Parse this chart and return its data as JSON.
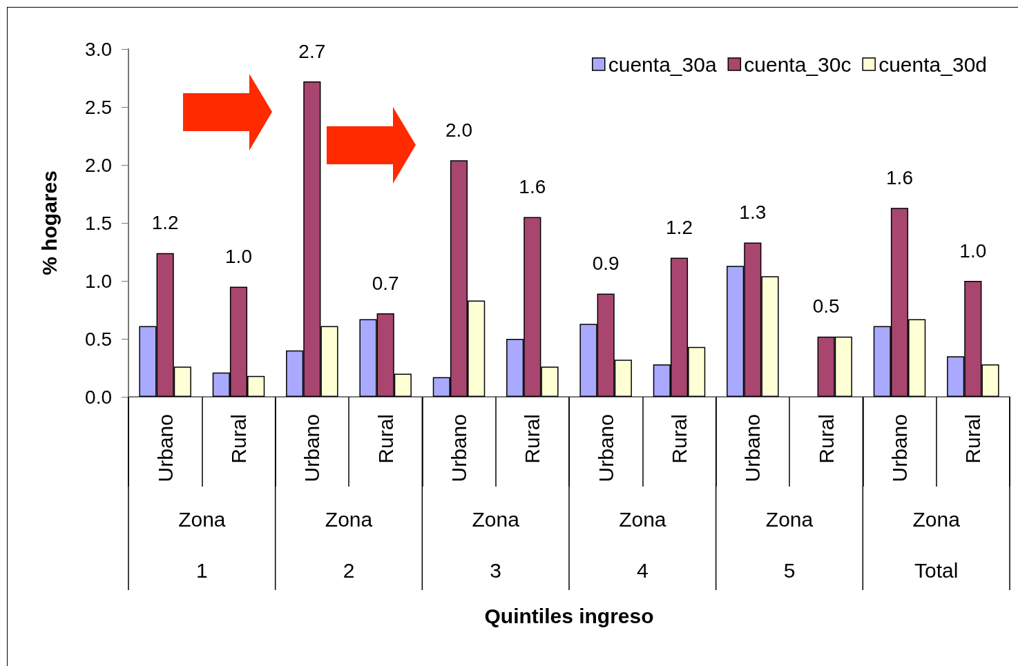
{
  "chart_data": {
    "type": "bar",
    "ylabel": "% hogares",
    "categories": [
      "Urbano",
      "Rural",
      "Urbano",
      "Rural",
      "Urbano",
      "Rural",
      "Urbano",
      "Rural",
      "Urbano",
      "Rural",
      "Urbano",
      "Rural"
    ],
    "annotations": [
      "Quintiles ingreso",
      "Zona\n1",
      "Zona\n2",
      "Zona\n3",
      "Zona\n4",
      "Zona\n5",
      "Zona\nTotal"
    ],
    "series": [
      {
        "name": "cuenta_30a",
        "color": "#a9a9ff",
        "values": [
          0.61,
          0.21,
          0.4,
          0.67,
          0.17,
          0.5,
          0.63,
          0.28,
          1.13,
          null,
          0.61,
          0.35
        ]
      },
      {
        "name": "cuenta_30c",
        "color": "#a8466f",
        "values": [
          1.24,
          0.95,
          2.72,
          0.72,
          2.04,
          1.55,
          0.89,
          1.2,
          1.33,
          0.52,
          1.63,
          1.0
        ],
        "value_labels": [
          "1.2",
          "1.0",
          "2.7",
          "0.7",
          "2.0",
          "1.6",
          "0.9",
          "1.2",
          "1.3",
          "0.5",
          "1.6",
          "1.0"
        ]
      },
      {
        "name": "cuenta_30d",
        "color": "#ffffd5",
        "values": [
          0.26,
          0.18,
          0.61,
          0.2,
          0.83,
          0.26,
          0.32,
          0.43,
          1.04,
          0.52,
          0.67,
          0.28
        ]
      }
    ],
    "ylim": [
      0,
      3
    ],
    "yticks": [
      {
        "value": 0,
        "label": "0.0"
      },
      {
        "value": 0.5,
        "label": "0.5"
      },
      {
        "value": 1,
        "label": "1.0"
      },
      {
        "value": 1.5,
        "label": "1.5"
      },
      {
        "value": 2,
        "label": "2.0"
      },
      {
        "value": 2.5,
        "label": "2.5"
      },
      {
        "value": 3,
        "label": "3.0"
      }
    ],
    "grid": false,
    "legend": "top right"
  }
}
